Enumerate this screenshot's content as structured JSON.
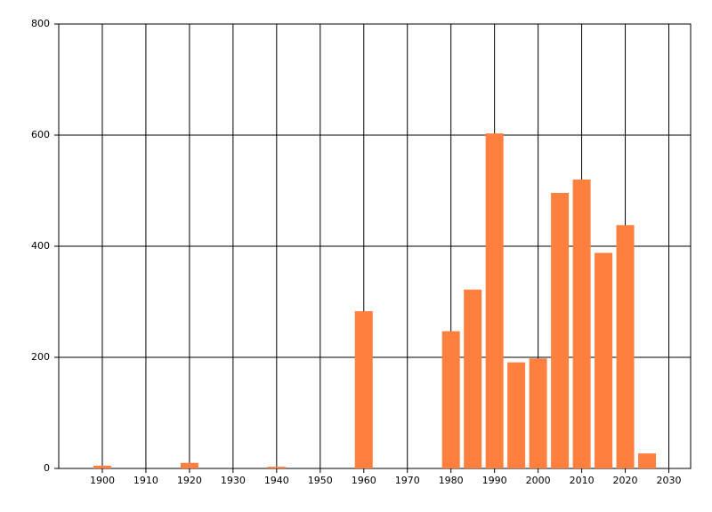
{
  "chart_data": {
    "type": "bar",
    "x": [
      1900,
      1920,
      1940,
      1960,
      1980,
      1985,
      1990,
      1995,
      2000,
      2005,
      2010,
      2015,
      2020,
      2025
    ],
    "values": [
      5,
      10,
      3,
      283,
      247,
      322,
      603,
      191,
      198,
      496,
      520,
      388,
      438,
      27
    ],
    "color": "#ff7f3f",
    "xlim": [
      1890,
      2035
    ],
    "xticks": [
      1900,
      1910,
      1920,
      1930,
      1940,
      1950,
      1960,
      1970,
      1980,
      1990,
      2000,
      2010,
      2020,
      2030
    ],
    "ylim": [
      0,
      800
    ],
    "yticks": [
      0,
      200,
      400,
      600,
      800
    ],
    "grid": true
  }
}
